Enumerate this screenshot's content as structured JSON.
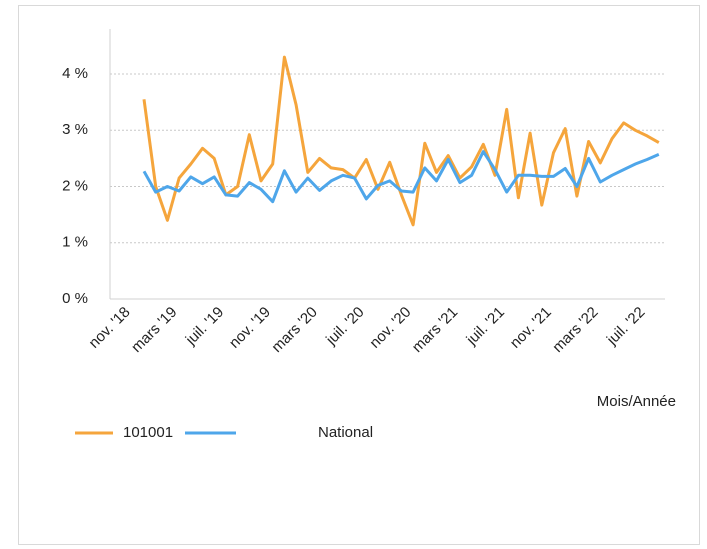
{
  "chart_data": {
    "type": "line",
    "x_label": "Mois/Année",
    "categories": [
      "nov. '18",
      null,
      null,
      null,
      "mars '19",
      null,
      null,
      null,
      "juil. '19",
      null,
      null,
      null,
      "nov. '19",
      null,
      null,
      null,
      "mars '20",
      null,
      null,
      null,
      "juil. '20",
      null,
      null,
      null,
      "nov. '20",
      null,
      null,
      null,
      "mars '21",
      null,
      null,
      null,
      "juil. '21",
      null,
      null,
      null,
      "nov. '21",
      null,
      null,
      null,
      "mars '22",
      null,
      null,
      null,
      "juil. '22"
    ],
    "series": [
      {
        "name": "101001",
        "color": "#f5a53c",
        "values": [
          3.55,
          2.0,
          1.4,
          2.15,
          2.4,
          2.68,
          2.5,
          1.85,
          2.0,
          2.92,
          2.1,
          2.4,
          4.3,
          3.45,
          2.25,
          2.5,
          2.33,
          2.3,
          2.15,
          2.48,
          1.95,
          2.43,
          1.85,
          1.32,
          2.77,
          2.25,
          2.55,
          2.15,
          2.35,
          2.75,
          2.2,
          3.37,
          1.8,
          2.95,
          1.67,
          2.6,
          3.03,
          1.83,
          2.8,
          2.42,
          2.85,
          3.13,
          3.0,
          2.9,
          2.78
        ]
      },
      {
        "name": "National",
        "color": "#4ea6ea",
        "values": [
          2.27,
          1.9,
          2.0,
          1.92,
          2.17,
          2.05,
          2.17,
          1.85,
          1.83,
          2.07,
          1.95,
          1.73,
          2.28,
          1.9,
          2.15,
          1.93,
          2.1,
          2.2,
          2.15,
          1.78,
          2.02,
          2.1,
          1.92,
          1.9,
          2.33,
          2.1,
          2.48,
          2.07,
          2.2,
          2.62,
          2.3,
          1.9,
          2.2,
          2.2,
          2.18,
          2.18,
          2.32,
          2.0,
          2.5,
          2.08,
          2.2,
          2.3,
          2.4,
          2.48,
          2.57
        ]
      }
    ],
    "ylim": [
      0,
      4.8
    ],
    "yticks": [
      {
        "value": 0,
        "label": "0 %"
      },
      {
        "value": 1,
        "label": "1 %"
      },
      {
        "value": 2,
        "label": "2 %"
      },
      {
        "value": 3,
        "label": "3 %"
      },
      {
        "value": 4,
        "label": "4 %"
      }
    ],
    "grid": true
  }
}
